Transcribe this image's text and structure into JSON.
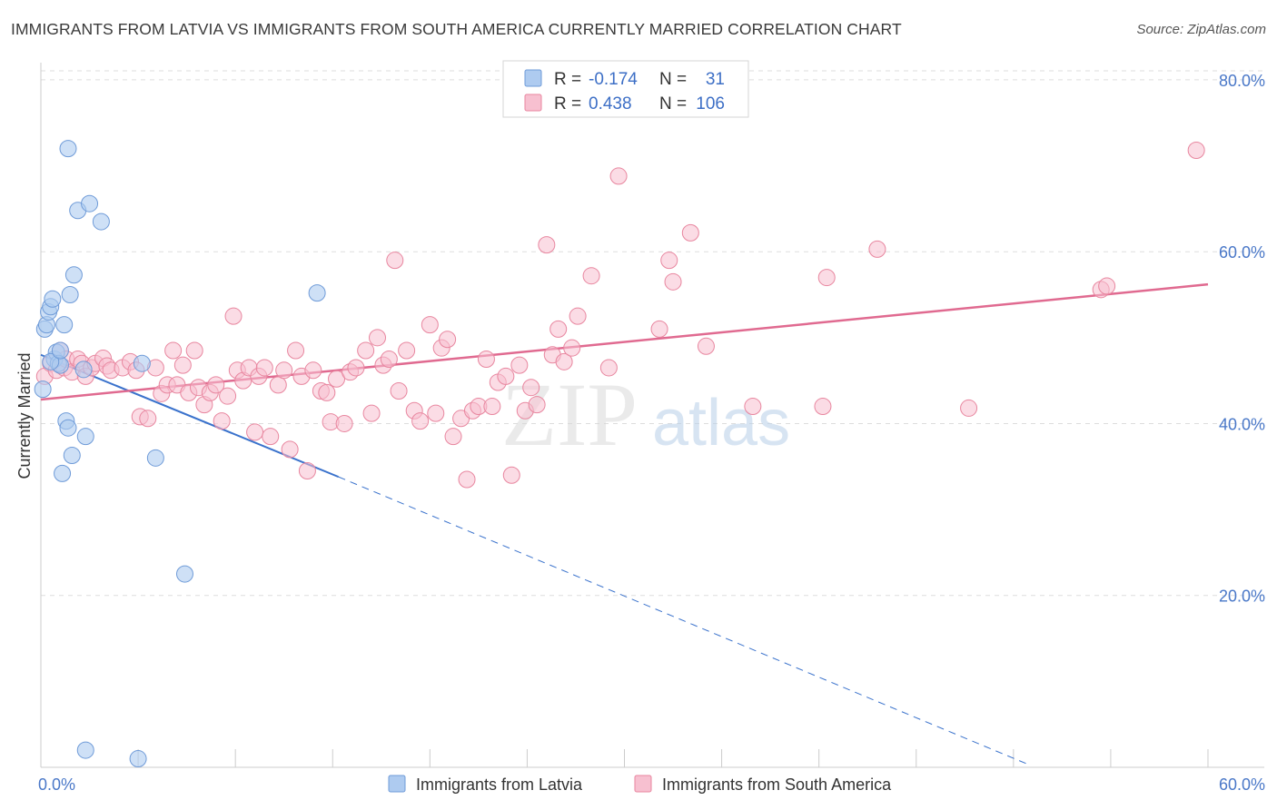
{
  "title": "IMMIGRANTS FROM LATVIA VS IMMIGRANTS FROM SOUTH AMERICA CURRENTLY MARRIED CORRELATION CHART",
  "source": "Source: ZipAtlas.com",
  "watermark": {
    "zip": "ZIP",
    "atlas": "atlas"
  },
  "colors": {
    "latvia_fill": "#aecbf0",
    "latvia_stroke": "#6f9bd8",
    "latvia_line": "#3a72cc",
    "sa_fill": "#f7c0d0",
    "sa_stroke": "#e8869f",
    "sa_line": "#e06a90",
    "grid": "#dddddd",
    "tick_label": "#4a78c8"
  },
  "legend": {
    "rows": [
      {
        "r_label": "R =",
        "r_value": "-0.174",
        "n_label": "N =",
        "n_value": "31"
      },
      {
        "r_label": "R =",
        "r_value": "0.438",
        "n_label": "N =",
        "n_value": "106"
      }
    ]
  },
  "bottom_legend": [
    "Immigrants from Latvia",
    "Immigrants from South America"
  ],
  "chart_data": {
    "type": "scatter",
    "title": "IMMIGRANTS FROM LATVIA VS IMMIGRANTS FROM SOUTH AMERICA CURRENTLY MARRIED CORRELATION CHART",
    "xlabel": "",
    "ylabel": "Currently Married",
    "xlim": [
      0,
      60
    ],
    "ylim": [
      0,
      82
    ],
    "x_tick_labels": [
      "0.0%",
      "60.0%"
    ],
    "y_ticks": [
      20,
      40,
      60,
      80
    ],
    "y_tick_labels": [
      "20.0%",
      "40.0%",
      "60.0%",
      "80.0%"
    ],
    "grid": true,
    "series": [
      {
        "name": "Immigrants from Latvia",
        "points": [
          [
            0.1,
            44.0
          ],
          [
            0.2,
            51.0
          ],
          [
            0.3,
            51.5
          ],
          [
            0.4,
            53.0
          ],
          [
            0.5,
            53.6
          ],
          [
            0.6,
            54.5
          ],
          [
            0.7,
            47.5
          ],
          [
            0.8,
            48.3
          ],
          [
            0.9,
            47.0
          ],
          [
            1.0,
            46.8
          ],
          [
            1.1,
            34.2
          ],
          [
            1.2,
            51.5
          ],
          [
            1.3,
            40.3
          ],
          [
            1.4,
            39.5
          ],
          [
            1.4,
            72.0
          ],
          [
            1.5,
            55.0
          ],
          [
            1.6,
            36.3
          ],
          [
            1.7,
            57.3
          ],
          [
            1.9,
            64.8
          ],
          [
            2.2,
            46.3
          ],
          [
            2.3,
            38.5
          ],
          [
            2.5,
            65.6
          ],
          [
            3.1,
            63.5
          ],
          [
            5.2,
            47.0
          ],
          [
            5.9,
            36.0
          ],
          [
            7.4,
            22.5
          ],
          [
            14.2,
            55.2
          ],
          [
            2.3,
            2.0
          ],
          [
            5.0,
            1.0
          ],
          [
            0.5,
            47.2
          ],
          [
            1.0,
            48.5
          ]
        ],
        "trend": {
          "solid": [
            [
              0,
              48.0
            ],
            [
              15.3,
              33.8
            ]
          ],
          "dashed": [
            [
              15.3,
              33.8
            ],
            [
              50.8,
              0.3
            ]
          ]
        }
      },
      {
        "name": "Immigrants from South America",
        "points": [
          [
            0.2,
            45.5
          ],
          [
            0.5,
            47.0
          ],
          [
            0.8,
            46.2
          ],
          [
            1.0,
            48.5
          ],
          [
            1.2,
            46.5
          ],
          [
            1.3,
            47.5
          ],
          [
            1.6,
            46.0
          ],
          [
            1.9,
            47.5
          ],
          [
            2.1,
            47.0
          ],
          [
            2.3,
            45.5
          ],
          [
            2.6,
            46.5
          ],
          [
            2.8,
            47.0
          ],
          [
            3.2,
            47.6
          ],
          [
            3.4,
            46.7
          ],
          [
            3.6,
            46.2
          ],
          [
            4.2,
            46.5
          ],
          [
            4.6,
            47.2
          ],
          [
            4.9,
            46.2
          ],
          [
            5.1,
            40.8
          ],
          [
            5.5,
            40.6
          ],
          [
            5.9,
            46.5
          ],
          [
            6.2,
            43.5
          ],
          [
            6.5,
            44.5
          ],
          [
            6.8,
            48.5
          ],
          [
            7.0,
            44.5
          ],
          [
            7.3,
            46.8
          ],
          [
            7.6,
            43.6
          ],
          [
            7.9,
            48.5
          ],
          [
            8.1,
            44.2
          ],
          [
            8.4,
            42.2
          ],
          [
            8.7,
            43.6
          ],
          [
            9.0,
            44.5
          ],
          [
            9.3,
            40.3
          ],
          [
            9.6,
            43.2
          ],
          [
            9.9,
            52.5
          ],
          [
            10.1,
            46.2
          ],
          [
            10.4,
            45.0
          ],
          [
            10.7,
            46.5
          ],
          [
            11.0,
            39.0
          ],
          [
            11.2,
            45.5
          ],
          [
            11.5,
            46.5
          ],
          [
            11.8,
            38.5
          ],
          [
            12.2,
            44.5
          ],
          [
            12.5,
            46.2
          ],
          [
            12.8,
            37.0
          ],
          [
            13.1,
            48.5
          ],
          [
            13.4,
            45.5
          ],
          [
            13.7,
            34.5
          ],
          [
            14.0,
            46.2
          ],
          [
            14.4,
            43.8
          ],
          [
            14.7,
            43.6
          ],
          [
            14.9,
            40.2
          ],
          [
            15.2,
            45.2
          ],
          [
            15.6,
            40.0
          ],
          [
            15.9,
            46.0
          ],
          [
            16.2,
            46.5
          ],
          [
            16.7,
            48.5
          ],
          [
            17.0,
            41.2
          ],
          [
            17.3,
            50.0
          ],
          [
            17.6,
            46.8
          ],
          [
            17.9,
            47.5
          ],
          [
            18.2,
            59.0
          ],
          [
            18.4,
            43.8
          ],
          [
            18.8,
            48.5
          ],
          [
            19.2,
            41.5
          ],
          [
            19.5,
            40.3
          ],
          [
            20.0,
            51.5
          ],
          [
            20.3,
            41.2
          ],
          [
            20.6,
            48.8
          ],
          [
            20.9,
            49.8
          ],
          [
            21.2,
            38.5
          ],
          [
            21.6,
            40.6
          ],
          [
            21.9,
            33.5
          ],
          [
            22.2,
            41.5
          ],
          [
            22.5,
            42.0
          ],
          [
            22.9,
            47.5
          ],
          [
            23.2,
            42.0
          ],
          [
            23.5,
            44.8
          ],
          [
            23.9,
            45.5
          ],
          [
            24.2,
            34.0
          ],
          [
            24.6,
            46.8
          ],
          [
            24.9,
            41.5
          ],
          [
            25.2,
            44.2
          ],
          [
            25.5,
            42.2
          ],
          [
            26.0,
            60.8
          ],
          [
            26.3,
            48.0
          ],
          [
            26.6,
            51.0
          ],
          [
            26.9,
            47.2
          ],
          [
            27.3,
            48.8
          ],
          [
            27.6,
            52.5
          ],
          [
            28.3,
            57.2
          ],
          [
            29.2,
            46.5
          ],
          [
            29.7,
            68.8
          ],
          [
            31.8,
            51.0
          ],
          [
            32.3,
            59.0
          ],
          [
            32.5,
            56.5
          ],
          [
            33.4,
            62.2
          ],
          [
            34.2,
            49.0
          ],
          [
            36.6,
            42.0
          ],
          [
            40.4,
            57.0
          ],
          [
            40.2,
            42.0
          ],
          [
            43.0,
            60.3
          ],
          [
            47.7,
            41.8
          ],
          [
            54.5,
            55.6
          ],
          [
            54.8,
            56.0
          ],
          [
            59.4,
            71.8
          ]
        ],
        "trend": {
          "solid": [
            [
              0,
              42.8
            ],
            [
              60,
              56.2
            ]
          ]
        }
      }
    ]
  }
}
